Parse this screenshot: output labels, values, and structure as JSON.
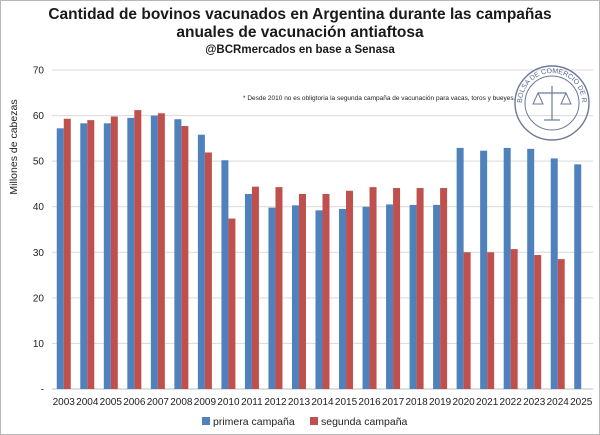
{
  "chart_data": {
    "type": "bar",
    "title_line1": "Cantidad de bovinos vacunados en Argentina durante las campañas",
    "title_line2": "anuales de vacunación antiaftosa",
    "subtitle": "@BCRmercados en base a Senasa",
    "ylabel": "Millones de cabezas",
    "xlabel": "",
    "ylim": [
      0,
      70
    ],
    "yticks": [
      0,
      10,
      20,
      30,
      40,
      50,
      60,
      70
    ],
    "ytick_labels": [
      "-",
      "10",
      "20",
      "30",
      "40",
      "50",
      "60",
      "70"
    ],
    "grid": true,
    "legend_position": "bottom",
    "annotation": "* Desde 2010 no es obligtoria la segunda campaña de vacunación para vacas, toros y bueyes.",
    "logo_text": "BOLSA DE COMERCIO DE ROSARIO",
    "categories": [
      "2003",
      "2004",
      "2005",
      "2006",
      "2007",
      "2008",
      "2009",
      "2010",
      "2011",
      "2012",
      "2013",
      "2014",
      "2015",
      "2016",
      "2017",
      "2018",
      "2019",
      "2020",
      "2021",
      "2022",
      "2023",
      "2024",
      "2025"
    ],
    "series": [
      {
        "name": "primera campaña",
        "color": "#4f81bd",
        "values": [
          57.2,
          58.3,
          58.3,
          59.5,
          60.0,
          59.2,
          55.8,
          50.2,
          42.8,
          39.8,
          40.3,
          39.2,
          39.5,
          40.0,
          40.5,
          40.4,
          40.4,
          52.9,
          52.3,
          52.9,
          52.7,
          50.6,
          49.3
        ]
      },
      {
        "name": "segunda campaña",
        "color": "#c0504d",
        "values": [
          59.3,
          59.0,
          59.8,
          61.2,
          60.5,
          57.7,
          51.9,
          37.4,
          44.4,
          44.3,
          42.8,
          42.8,
          43.5,
          44.3,
          44.1,
          44.1,
          44.1,
          30.0,
          30.0,
          30.7,
          29.4,
          28.5,
          null
        ]
      }
    ]
  }
}
